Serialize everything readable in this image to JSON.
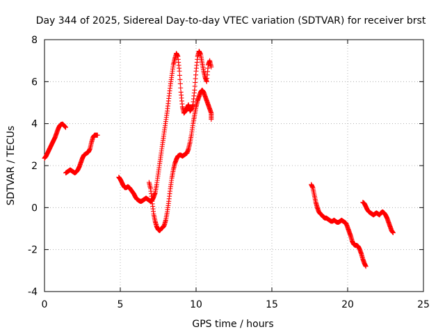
{
  "chart_data": {
    "type": "scatter",
    "title": "Day 344 of 2025, Sidereal Day-to-day VTEC variation (SDTVAR) for receiver brst",
    "xlabel": "GPS time / hours",
    "ylabel": "SDTVAR / TECUs",
    "xlim": [
      0,
      25
    ],
    "ylim": [
      -4,
      8
    ],
    "xticks": [
      0,
      5,
      10,
      15,
      20,
      25
    ],
    "yticks": [
      -4,
      -2,
      0,
      2,
      4,
      6,
      8
    ],
    "xtick_labels": [
      "0",
      "5",
      "10",
      "15",
      "20",
      "25"
    ],
    "ytick_labels": [
      "-4",
      "-2",
      "0",
      "2",
      "4",
      "6",
      "8"
    ],
    "grid": true,
    "marker": "+",
    "color": "#ff0000",
    "series": [
      {
        "name": "seg1",
        "x": [
          0.0,
          0.1,
          0.2,
          0.3,
          0.4,
          0.5,
          0.6,
          0.7,
          0.8,
          0.9,
          1.0,
          1.1,
          1.2,
          1.3,
          1.4
        ],
        "y": [
          2.35,
          2.45,
          2.6,
          2.75,
          2.9,
          3.05,
          3.2,
          3.35,
          3.55,
          3.75,
          3.9,
          3.97,
          3.98,
          3.9,
          3.82
        ]
      },
      {
        "name": "seg2",
        "x": [
          1.4,
          1.5,
          1.6,
          1.7,
          1.8,
          1.9,
          2.0,
          2.1,
          2.2,
          2.3,
          2.4,
          2.5,
          2.6,
          2.7,
          2.8,
          2.9,
          3.0,
          3.1,
          3.2,
          3.3,
          3.4,
          3.5
        ],
        "y": [
          1.65,
          1.7,
          1.75,
          1.8,
          1.75,
          1.7,
          1.65,
          1.7,
          1.8,
          1.95,
          2.15,
          2.35,
          2.5,
          2.55,
          2.6,
          2.65,
          2.8,
          3.1,
          3.35,
          3.45,
          3.45,
          3.45
        ]
      },
      {
        "name": "seg3",
        "x": [
          4.9,
          5.0,
          5.1,
          5.2,
          5.3,
          5.4,
          5.5,
          5.6,
          5.7,
          5.8,
          5.9,
          6.0,
          6.1,
          6.2,
          6.3,
          6.4,
          6.5,
          6.6,
          6.7,
          6.8,
          6.9,
          7.0,
          7.1,
          7.2,
          7.3,
          7.4,
          7.5,
          7.6,
          7.7,
          7.8,
          7.9,
          8.0,
          8.1,
          8.2,
          8.3,
          8.4,
          8.5,
          8.6,
          8.7,
          8.8,
          8.9,
          9.0,
          9.1,
          9.2,
          9.3,
          9.4,
          9.5,
          9.6,
          9.7,
          9.8,
          9.9,
          10.0,
          10.1,
          10.2,
          10.3,
          10.4,
          10.5,
          10.6,
          10.7,
          10.8,
          10.9,
          11.0
        ],
        "y": [
          1.45,
          1.35,
          1.2,
          1.05,
          0.95,
          0.95,
          1.0,
          0.95,
          0.85,
          0.75,
          0.65,
          0.5,
          0.4,
          0.35,
          0.3,
          0.3,
          0.35,
          0.4,
          0.45,
          0.4,
          0.35,
          0.3,
          0.35,
          0.5,
          0.7,
          1.1,
          1.6,
          2.1,
          2.6,
          3.1,
          3.6,
          4.1,
          4.6,
          5.2,
          5.8,
          6.3,
          6.8,
          7.1,
          7.35,
          7.2,
          6.5,
          5.5,
          4.8,
          4.5,
          4.6,
          4.75,
          4.9,
          4.6,
          4.7,
          4.9,
          5.6,
          6.5,
          7.2,
          7.45,
          7.3,
          6.9,
          6.5,
          6.2,
          6.0,
          6.8,
          7.0,
          6.7
        ]
      },
      {
        "name": "seg4",
        "x": [
          6.9,
          7.0,
          7.1,
          7.2,
          7.3,
          7.4,
          7.5,
          7.6,
          7.7,
          7.8,
          7.9,
          8.0,
          8.1,
          8.2,
          8.3,
          8.4,
          8.5,
          8.6,
          8.7,
          8.8,
          8.9,
          9.0,
          9.1,
          9.2,
          9.3,
          9.4,
          9.5,
          9.6,
          9.7,
          9.8,
          9.9,
          10.0,
          10.1,
          10.2,
          10.3,
          10.4,
          10.5,
          10.6,
          10.7,
          10.8,
          10.9,
          11.0,
          11.0
        ],
        "y": [
          1.2,
          0.9,
          0.3,
          -0.3,
          -0.65,
          -0.9,
          -1.05,
          -1.1,
          -1.0,
          -0.95,
          -0.85,
          -0.6,
          -0.2,
          0.3,
          0.9,
          1.4,
          1.8,
          2.1,
          2.3,
          2.45,
          2.5,
          2.5,
          2.45,
          2.5,
          2.55,
          2.6,
          2.8,
          3.1,
          3.5,
          4.0,
          4.4,
          4.8,
          5.1,
          5.3,
          5.5,
          5.6,
          5.5,
          5.3,
          5.1,
          4.9,
          4.7,
          4.5,
          4.2
        ]
      },
      {
        "name": "seg5",
        "x": [
          17.6,
          17.7,
          17.8,
          17.9,
          18.0,
          18.1,
          18.2,
          18.3,
          18.4,
          18.5,
          18.6,
          18.7,
          18.8,
          18.9,
          19.0,
          19.1,
          19.2,
          19.3,
          19.4,
          19.5,
          19.6,
          19.7,
          19.8,
          19.9,
          20.0,
          20.1,
          20.2,
          20.3,
          20.4,
          20.5,
          20.6,
          20.7,
          20.8,
          20.9,
          21.0,
          21.1,
          21.2
        ],
        "y": [
          1.1,
          0.95,
          0.6,
          0.25,
          0.0,
          -0.2,
          -0.3,
          -0.35,
          -0.45,
          -0.5,
          -0.5,
          -0.55,
          -0.6,
          -0.65,
          -0.65,
          -0.6,
          -0.65,
          -0.7,
          -0.7,
          -0.65,
          -0.6,
          -0.65,
          -0.7,
          -0.75,
          -0.95,
          -1.15,
          -1.35,
          -1.6,
          -1.75,
          -1.8,
          -1.8,
          -1.85,
          -2.0,
          -2.2,
          -2.45,
          -2.65,
          -2.8
        ]
      },
      {
        "name": "seg6",
        "x": [
          21.0,
          21.1,
          21.2,
          21.3,
          21.4,
          21.5,
          21.6,
          21.7,
          21.8,
          21.9,
          22.0,
          22.1,
          22.2,
          22.3,
          22.4,
          22.5,
          22.6,
          22.7,
          22.8,
          22.9,
          23.0
        ],
        "y": [
          0.25,
          0.2,
          0.05,
          -0.1,
          -0.2,
          -0.25,
          -0.3,
          -0.35,
          -0.3,
          -0.25,
          -0.3,
          -0.35,
          -0.25,
          -0.2,
          -0.25,
          -0.35,
          -0.5,
          -0.7,
          -0.9,
          -1.1,
          -1.2
        ]
      }
    ]
  }
}
